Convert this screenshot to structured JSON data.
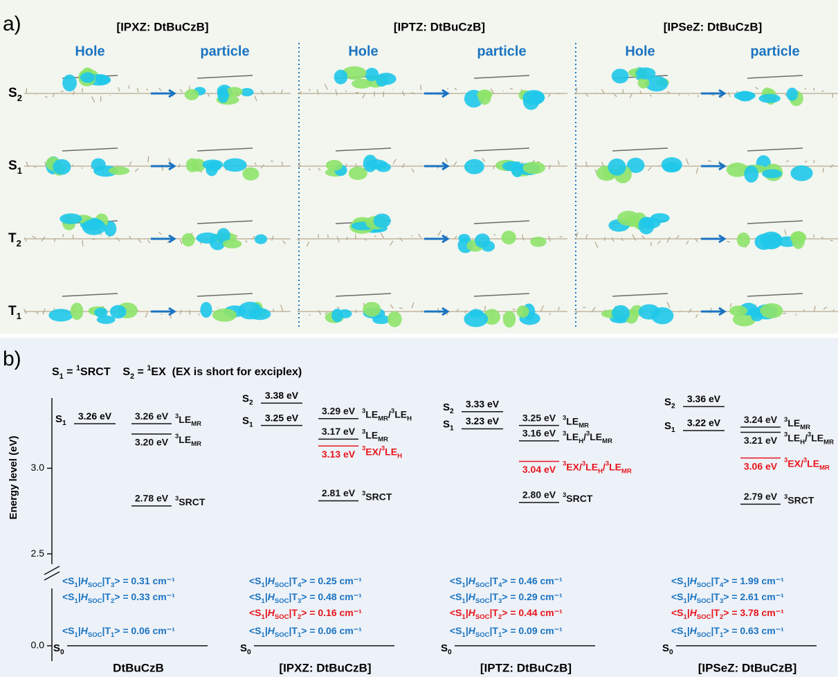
{
  "panel_a": {
    "label": "a)",
    "columns": [
      {
        "title": "[IPXZ: DtBuCzB]",
        "hole": "Hole",
        "particle": "particle"
      },
      {
        "title": "[IPTZ: DtBuCzB]",
        "hole": "Hole",
        "particle": "particle"
      },
      {
        "title": "[IPSeZ: DtBuCzB]",
        "hole": "Hole",
        "particle": "particle"
      }
    ],
    "states": [
      [
        {
          "text": "S",
          "sub": "2"
        }
      ],
      [
        {
          "text": "S",
          "sub": "1"
        }
      ],
      [
        {
          "text": "T",
          "sub": "2"
        }
      ],
      [
        {
          "text": "T",
          "sub": "1"
        }
      ]
    ]
  },
  "panel_b": {
    "label": "b)",
    "definition": [
      {
        "text": "S",
        "sub": "1"
      },
      {
        "text": " = "
      },
      {
        "sup": "1",
        "text": "SRCT"
      },
      {
        "text": "    S",
        "sub": "2"
      },
      {
        "text": " = "
      },
      {
        "sup": "1",
        "text": "EX  (EX is short for exciplex)"
      }
    ],
    "y_label": "Energy level (eV)",
    "ylim": [
      2.44,
      3.41
    ],
    "yticks": [
      {
        "value": 3,
        "label": "3.0"
      },
      {
        "value": 2.5,
        "label": "2.5"
      }
    ],
    "ylim_lower": [
      -0.08,
      0.3
    ],
    "yticks_lower": [
      {
        "value": 0,
        "label": "0.0"
      }
    ],
    "groups": [
      {
        "name": "DtBuCzB",
        "s0": [
          {
            "text": "S",
            "sub": "0"
          }
        ],
        "singlets": [
          {
            "state": [
              {
                "text": "S",
                "sub": "1"
              }
            ],
            "value": 3.26,
            "label": "3.26 eV"
          }
        ],
        "triplets": [
          {
            "value": 3.26,
            "label": "3.26 eV",
            "state": [
              {
                "sup": "3",
                "text": "LE",
                "sub": "MR"
              }
            ],
            "color": "#111111"
          },
          {
            "value": 3.2,
            "label": "3.20 eV",
            "state": [
              {
                "sup": "3",
                "text": "LE",
                "sub": "MR"
              }
            ],
            "color": "#111111"
          },
          {
            "value": 2.78,
            "label": "2.78 eV",
            "state": [
              {
                "sup": "3",
                "text": "SRCT"
              }
            ],
            "color": "#111111"
          }
        ],
        "soc": [
          {
            "color": "#1a73c2",
            "parts": [
              {
                "text": "<S",
                "sub": "1"
              },
              {
                "text": "|"
              },
              {
                "text": "H",
                "sub": "SOC"
              },
              {
                "text": "|T",
                "sub": "3"
              },
              {
                "text": "> = 0.31 cm⁻¹"
              }
            ]
          },
          {
            "color": "#1a73c2",
            "parts": [
              {
                "text": "<S",
                "sub": "1"
              },
              {
                "text": "|"
              },
              {
                "text": "H",
                "sub": "SOC"
              },
              {
                "text": "|T",
                "sub": "2"
              },
              {
                "text": "> = 0.33 cm⁻¹"
              }
            ]
          },
          {
            "color": "#1a73c2",
            "parts": [
              {
                "text": "<S",
                "sub": "1"
              },
              {
                "text": "|"
              },
              {
                "text": "H",
                "sub": "SOC"
              },
              {
                "text": "|T",
                "sub": "1"
              },
              {
                "text": "> = 0.06 cm⁻¹"
              }
            ]
          }
        ]
      },
      {
        "name": "[IPXZ: DtBuCzB]",
        "s0": [
          {
            "text": "S",
            "sub": "0"
          }
        ],
        "singlets": [
          {
            "state": [
              {
                "text": "S",
                "sub": "2"
              }
            ],
            "value": 3.38,
            "label": "3.38 eV"
          },
          {
            "state": [
              {
                "text": "S",
                "sub": "1"
              }
            ],
            "value": 3.25,
            "label": "3.25 eV"
          }
        ],
        "triplets": [
          {
            "value": 3.29,
            "label": "3.29 eV",
            "state": [
              {
                "sup": "3",
                "text": "LE",
                "sub": "MR"
              },
              {
                "text": "/"
              },
              {
                "sup": "3",
                "text": "LE",
                "sub": "H"
              }
            ],
            "color": "#111111"
          },
          {
            "value": 3.17,
            "label": "3.17 eV",
            "state": [
              {
                "sup": "3",
                "text": "LE",
                "sub": "MR"
              }
            ],
            "color": "#111111"
          },
          {
            "value": 3.13,
            "label": "3.13 eV",
            "state": [
              {
                "sup": "3",
                "text": "EX"
              },
              {
                "text": "/"
              },
              {
                "sup": "3",
                "text": "LE",
                "sub": "H"
              }
            ],
            "color": "#e8141b"
          },
          {
            "value": 2.81,
            "label": "2.81 eV",
            "state": [
              {
                "sup": "3",
                "text": "SRCT"
              }
            ],
            "color": "#111111"
          }
        ],
        "soc": [
          {
            "color": "#1a73c2",
            "parts": [
              {
                "text": "<S",
                "sub": "1"
              },
              {
                "text": "|"
              },
              {
                "text": "H",
                "sub": "SOC"
              },
              {
                "text": "|T",
                "sub": "4"
              },
              {
                "text": "> = 0.25 cm⁻¹"
              }
            ]
          },
          {
            "color": "#1a73c2",
            "parts": [
              {
                "text": "<S",
                "sub": "1"
              },
              {
                "text": "|"
              },
              {
                "text": "H",
                "sub": "SOC"
              },
              {
                "text": "|T",
                "sub": "3"
              },
              {
                "text": "> = 0.48 cm⁻¹"
              }
            ]
          },
          {
            "color": "#e8141b",
            "parts": [
              {
                "text": "<S",
                "sub": "1"
              },
              {
                "text": "|"
              },
              {
                "text": "H",
                "sub": "SOC"
              },
              {
                "text": "|T",
                "sub": "2"
              },
              {
                "text": "> = 0.16 cm⁻¹"
              }
            ]
          },
          {
            "color": "#1a73c2",
            "parts": [
              {
                "text": "<S",
                "sub": "1"
              },
              {
                "text": "|"
              },
              {
                "text": "H",
                "sub": "SOC"
              },
              {
                "text": "|T",
                "sub": "1"
              },
              {
                "text": "> = 0.06 cm⁻¹"
              }
            ]
          }
        ]
      },
      {
        "name": "[IPTZ: DtBuCzB]",
        "s0": [
          {
            "text": "S",
            "sub": "0"
          }
        ],
        "singlets": [
          {
            "state": [
              {
                "text": "S",
                "sub": "2"
              }
            ],
            "value": 3.33,
            "label": "3.33 eV"
          },
          {
            "state": [
              {
                "text": "S",
                "sub": "1"
              }
            ],
            "value": 3.23,
            "label": "3.23 eV"
          }
        ],
        "triplets": [
          {
            "value": 3.25,
            "label": "3.25 eV",
            "state": [
              {
                "sup": "3",
                "text": "LE",
                "sub": "MR"
              }
            ],
            "color": "#111111"
          },
          {
            "value": 3.16,
            "label": "3.16 eV",
            "state": [
              {
                "sup": "3",
                "text": "LE",
                "sub": "H"
              },
              {
                "text": "/"
              },
              {
                "sup": "3",
                "text": "LE",
                "sub": "MR"
              }
            ],
            "color": "#111111"
          },
          {
            "value": 3.04,
            "label": "3.04 eV",
            "state": [
              {
                "sup": "3",
                "text": "EX"
              },
              {
                "text": "/"
              },
              {
                "sup": "3",
                "text": "LE",
                "sub": "H"
              },
              {
                "text": "/"
              },
              {
                "sup": "3",
                "text": "LE",
                "sub": "MR"
              }
            ],
            "color": "#e8141b"
          },
          {
            "value": 2.8,
            "label": "2.80 eV",
            "state": [
              {
                "sup": "3",
                "text": "SRCT"
              }
            ],
            "color": "#111111"
          }
        ],
        "soc": [
          {
            "color": "#1a73c2",
            "parts": [
              {
                "text": "<S",
                "sub": "1"
              },
              {
                "text": "|"
              },
              {
                "text": "H",
                "sub": "SOC"
              },
              {
                "text": "|T",
                "sub": "4"
              },
              {
                "text": "> = 0.46 cm⁻¹"
              }
            ]
          },
          {
            "color": "#1a73c2",
            "parts": [
              {
                "text": "<S",
                "sub": "1"
              },
              {
                "text": "|"
              },
              {
                "text": "H",
                "sub": "SOC"
              },
              {
                "text": "|T",
                "sub": "3"
              },
              {
                "text": "> = 0.29 cm⁻¹"
              }
            ]
          },
          {
            "color": "#e8141b",
            "parts": [
              {
                "text": "<S",
                "sub": "1"
              },
              {
                "text": "|"
              },
              {
                "text": "H",
                "sub": "SOC"
              },
              {
                "text": "|T",
                "sub": "2"
              },
              {
                "text": "> = 0.44 cm⁻¹"
              }
            ]
          },
          {
            "color": "#1a73c2",
            "parts": [
              {
                "text": "<S",
                "sub": "1"
              },
              {
                "text": "|"
              },
              {
                "text": "H",
                "sub": "SOC"
              },
              {
                "text": "|T",
                "sub": "1"
              },
              {
                "text": "> = 0.09 cm⁻¹"
              }
            ]
          }
        ]
      },
      {
        "name": "[IPSeZ: DtBuCzB]",
        "s0": [
          {
            "text": "S",
            "sub": "0"
          }
        ],
        "singlets": [
          {
            "state": [
              {
                "text": "S",
                "sub": "2"
              }
            ],
            "value": 3.36,
            "label": "3.36 eV"
          },
          {
            "state": [
              {
                "text": "S",
                "sub": "1"
              }
            ],
            "value": 3.22,
            "label": "3.22 eV"
          }
        ],
        "triplets": [
          {
            "value": 3.24,
            "label": "3.24 eV",
            "state": [
              {
                "sup": "3",
                "text": "LE",
                "sub": "MR"
              }
            ],
            "color": "#111111"
          },
          {
            "value": 3.21,
            "label": "3.21 eV",
            "state": [
              {
                "sup": "3",
                "text": "LE",
                "sub": "H"
              },
              {
                "text": "/"
              },
              {
                "sup": "3",
                "text": "LE",
                "sub": "MR"
              }
            ],
            "color": "#111111"
          },
          {
            "value": 3.06,
            "label": "3.06 eV",
            "state": [
              {
                "sup": "3",
                "text": "EX"
              },
              {
                "text": "/"
              },
              {
                "sup": "3",
                "text": "LE",
                "sub": "MR"
              }
            ],
            "color": "#e8141b"
          },
          {
            "value": 2.79,
            "label": "2.79 eV",
            "state": [
              {
                "sup": "3",
                "text": "SRCT"
              }
            ],
            "color": "#111111"
          }
        ],
        "soc": [
          {
            "color": "#1a73c2",
            "parts": [
              {
                "text": "<S",
                "sub": "1"
              },
              {
                "text": "|"
              },
              {
                "text": "H",
                "sub": "SOC"
              },
              {
                "text": "|T",
                "sub": "4"
              },
              {
                "text": "> = 1.99 cm⁻¹"
              }
            ]
          },
          {
            "color": "#1a73c2",
            "parts": [
              {
                "text": "<S",
                "sub": "1"
              },
              {
                "text": "|"
              },
              {
                "text": "H",
                "sub": "SOC"
              },
              {
                "text": "|T",
                "sub": "3"
              },
              {
                "text": "> = 2.61 cm⁻¹"
              }
            ]
          },
          {
            "color": "#e8141b",
            "parts": [
              {
                "text": "<S",
                "sub": "1"
              },
              {
                "text": "|"
              },
              {
                "text": "H",
                "sub": "SOC"
              },
              {
                "text": "|T",
                "sub": "2"
              },
              {
                "text": "> = 3.78 cm⁻¹"
              }
            ]
          },
          {
            "color": "#1a73c2",
            "parts": [
              {
                "text": "<S",
                "sub": "1"
              },
              {
                "text": "|"
              },
              {
                "text": "H",
                "sub": "SOC"
              },
              {
                "text": "|T",
                "sub": "1"
              },
              {
                "text": "> = 0.63 cm⁻¹"
              }
            ]
          }
        ]
      }
    ]
  }
}
